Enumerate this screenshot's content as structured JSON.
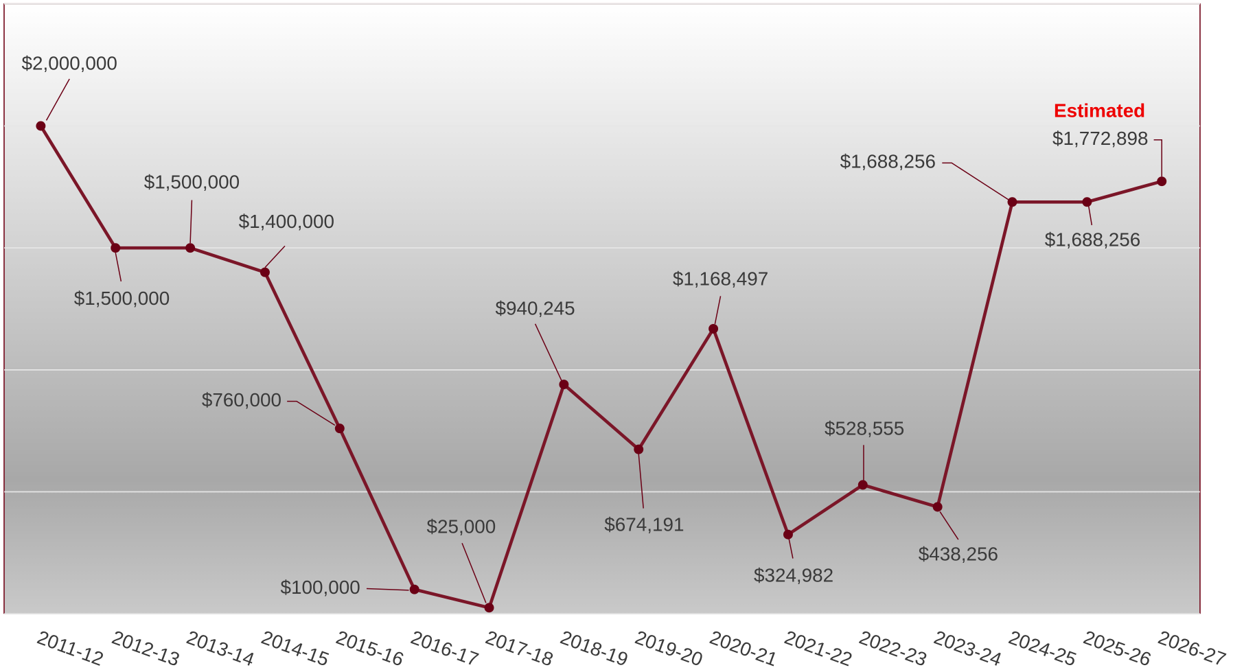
{
  "chart_data": {
    "type": "line",
    "annotation": "Estimated",
    "categories": [
      "2011-12",
      "2012-13",
      "2013-14",
      "2014-15",
      "2015-16",
      "2016-17",
      "2017-18",
      "2018-19",
      "2019-20",
      "2020-21",
      "2021-22",
      "2022-23",
      "2023-24",
      "2024-25",
      "2025-26",
      "2026-27"
    ],
    "series": [
      {
        "color": "#7b1628",
        "marker_color": "#6b0015",
        "values": [
          2000000,
          1500000,
          1500000,
          1400000,
          760000,
          100000,
          25000,
          940245,
          674191,
          1168497,
          324982,
          528555,
          438256,
          1688256,
          1688256,
          1772898
        ],
        "value_labels": [
          "$2,000,000",
          "$1,500,000",
          "$1,500,000",
          "$1,400,000",
          "$760,000",
          "$100,000",
          "$25,000",
          "$940,245",
          "$674,191",
          "$1,168,497",
          "$324,982",
          "$528,555",
          "$438,256",
          "$1,688,256",
          "$1,688,256",
          "$1,772,898"
        ]
      }
    ],
    "ylim": [
      0,
      2500000
    ],
    "yticks": [
      0,
      500000,
      1000000,
      1500000,
      2000000,
      2500000
    ],
    "grid": true
  }
}
